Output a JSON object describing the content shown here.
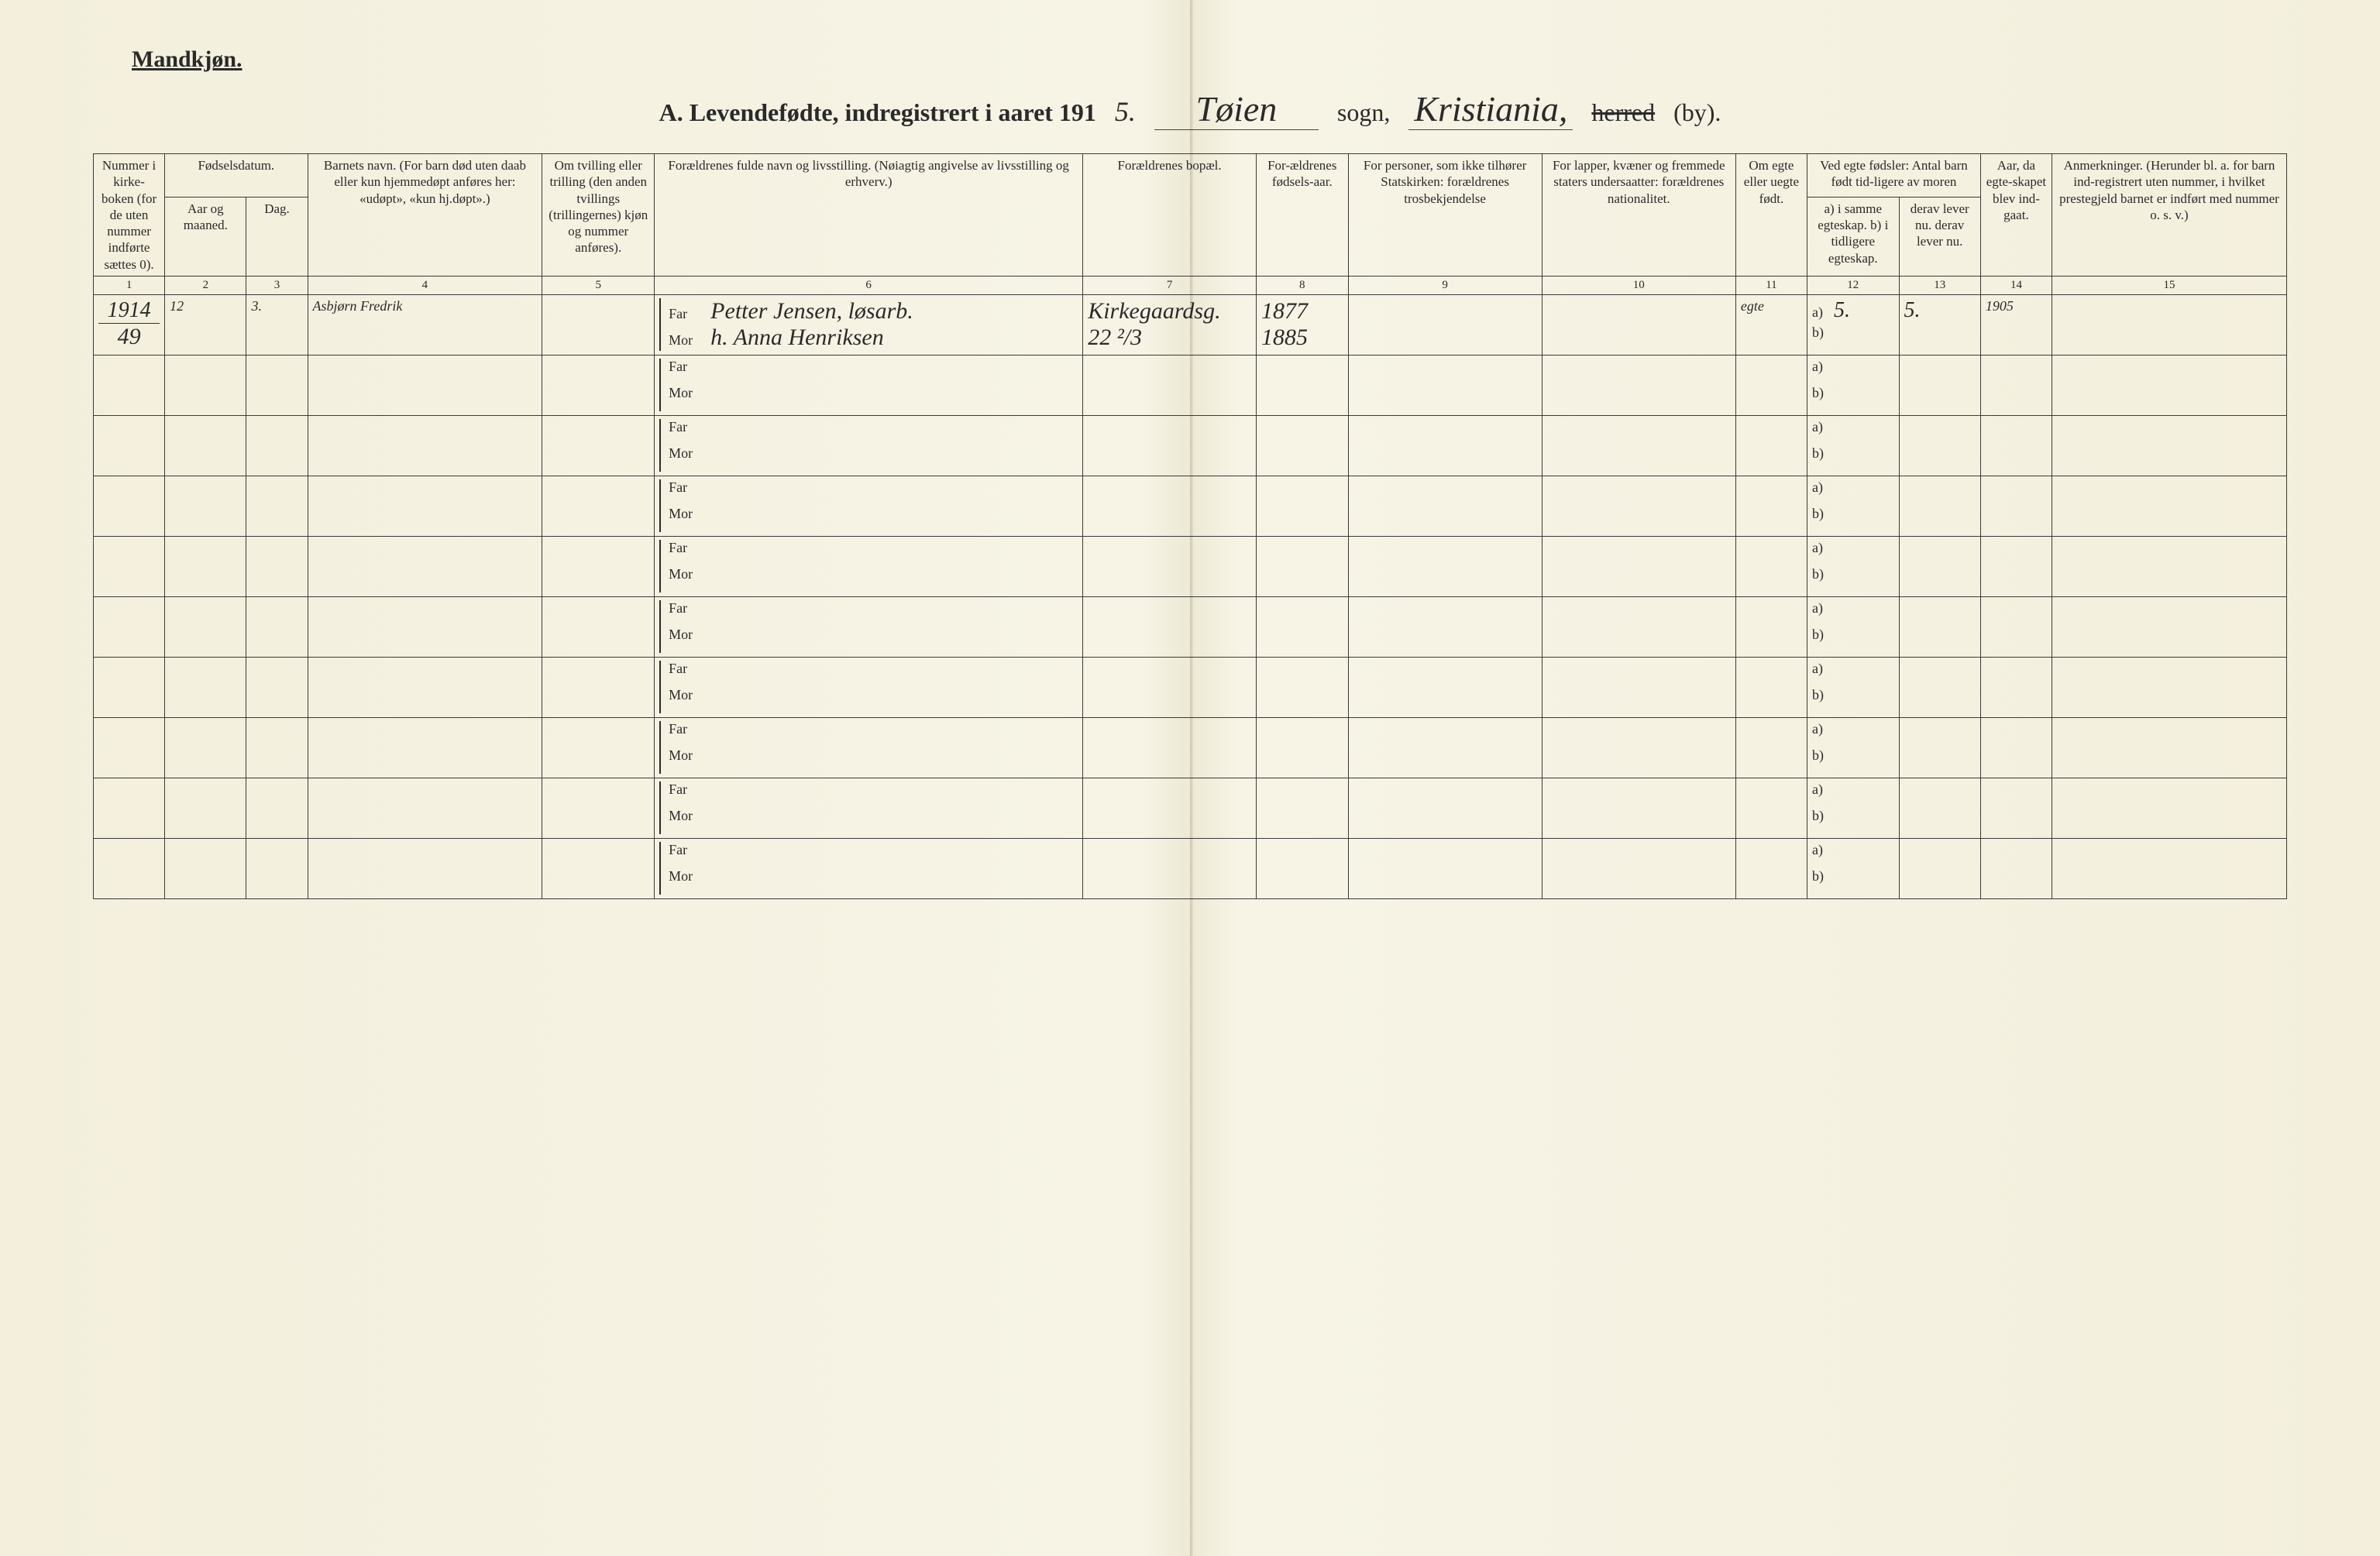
{
  "corner_label": "Mandkjøn.",
  "title": {
    "prefix": "A.  Levendefødte, indregistrert i aaret 191",
    "year_suffix_hand": "5.",
    "parish_hand": "Tøien",
    "sogn_word": "sogn,",
    "city_hand": "Kristiania,",
    "herred_word": "herred",
    "by_word": "(by)."
  },
  "columns": {
    "c1": "Nummer i kirke-boken (for de uten nummer indførte sættes 0).",
    "c2_group": "Fødselsdatum.",
    "c2": "Aar og maaned.",
    "c3": "Dag.",
    "c4": "Barnets navn.\n(For barn død uten daab eller kun hjemmedøpt anføres her: «udøpt», «kun hj.døpt».)",
    "c5": "Om tvilling eller trilling (den anden tvillings (trillingernes) kjøn og nummer anføres).",
    "c6": "Forældrenes fulde navn og livsstilling.\n(Nøiagtig angivelse av livsstilling og erhverv.)",
    "c7": "Forældrenes bopæl.",
    "c8": "For-ældrenes fødsels-aar.",
    "c9": "For personer, som ikke tilhører Statskirken: forældrenes trosbekjendelse",
    "c10": "For lapper, kvæner og fremmede staters undersaatter: forældrenes nationalitet.",
    "c11": "Om egte eller uegte født.",
    "c12_group": "Ved egte fødsler: Antal barn født tid-ligere av moren",
    "c12": "a) i samme egteskap.\nb) i tidligere egteskap.",
    "c13": "derav lever nu.\nderav lever nu.",
    "c14": "Aar, da egte-skapet blev ind-gaat.",
    "c15": "Anmerkninger.\n(Herunder bl. a. for barn ind-registrert uten nummer, i hvilket prestegjeld barnet er indført med nummer o. s. v.)"
  },
  "colnums": [
    "1",
    "2",
    "3",
    "4",
    "5",
    "6",
    "7",
    "8",
    "9",
    "10",
    "11",
    "12",
    "13",
    "14",
    "15"
  ],
  "far_label": "Far",
  "mor_label": "Mor",
  "a_label": "a)",
  "b_label": "b)",
  "rows": [
    {
      "num_year": "1914",
      "num": "49",
      "aar_maaned": "12",
      "dag": "3.",
      "barnets_navn": "Asbjørn Fredrik",
      "tvilling": "",
      "far": "Petter Jensen, løsarb.",
      "mor": "h. Anna Henriksen",
      "bopel_far": "Kirkegaardsg.",
      "bopel_mor": "22 ²/3",
      "fodselsaar_far": "1877",
      "fodselsaar_mor": "1885",
      "statskirken": "",
      "nationalitet": "",
      "egte": "egte",
      "a_val": "5.",
      "b_val": "",
      "derav_a": "5.",
      "derav_b": "",
      "egteskap_aar": "1905",
      "anm": ""
    },
    {},
    {},
    {},
    {},
    {},
    {},
    {},
    {},
    {}
  ],
  "styling": {
    "page_bg": "#f5f2e2",
    "ink": "#2a2a2a",
    "hand_font": "Brush Script MT",
    "header_fontsize_pt": 13,
    "body_fontsize_pt": 14,
    "title_fontsize_pt": 24
  }
}
